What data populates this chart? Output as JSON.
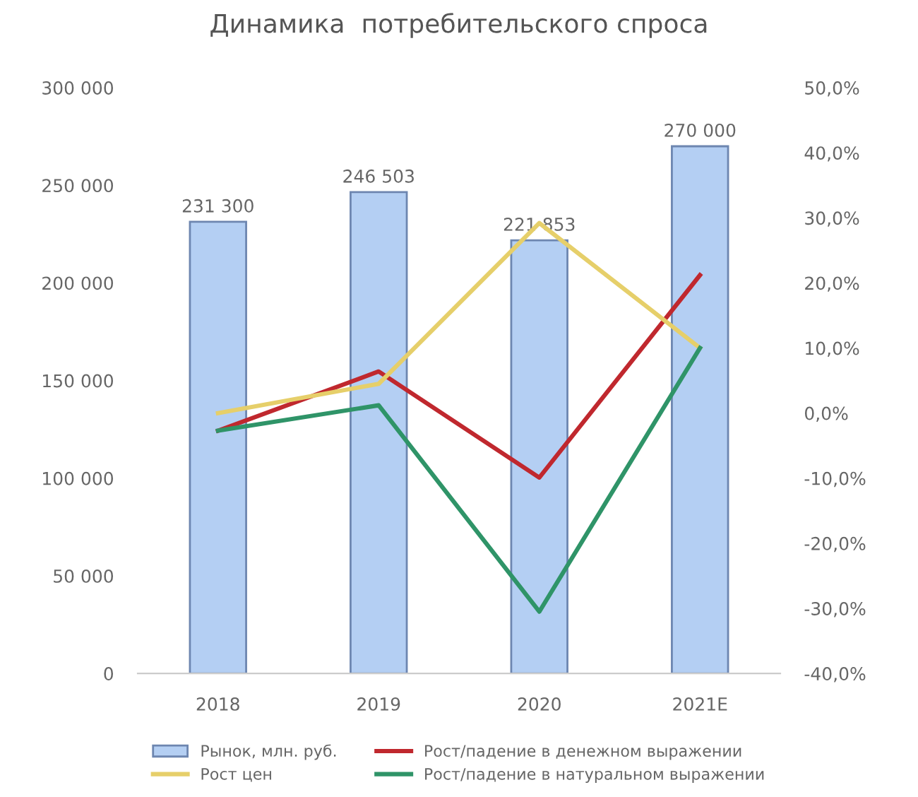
{
  "chart_data": {
    "type": "bar",
    "title": "Динамика  потребительского спроса",
    "categories": [
      "2018",
      "2019",
      "2020",
      "2021E"
    ],
    "series": [
      {
        "name": "Рынок, млн. руб.",
        "color": "#b4cff3",
        "values": [
          231300,
          246503,
          221853,
          270000
        ],
        "value_labels": [
          "231 300",
          "246 503",
          "221 853",
          "270 000"
        ]
      },
      {
        "name": "Рост/падение в денежном выражении",
        "type": "line",
        "axis": "y2",
        "color": "#c0282e",
        "values": [
          -2.7,
          6.4,
          -9.9,
          21.2
        ]
      },
      {
        "name": "Рост цен",
        "type": "line",
        "axis": "y2",
        "color": "#e6cf6a",
        "values": [
          0.0,
          4.5,
          29.2,
          10.0
        ]
      },
      {
        "name": "Рост/падение в натуральном выражении",
        "type": "line",
        "axis": "y2",
        "color": "#2f9468",
        "values": [
          -2.7,
          1.2,
          -30.5,
          10.0
        ]
      }
    ],
    "ylim": [
      0,
      300000
    ],
    "yticks": [
      {
        "value": 0,
        "label": "0"
      },
      {
        "value": 50000,
        "label": "50 000"
      },
      {
        "value": 100000,
        "label": "100 000"
      },
      {
        "value": 150000,
        "label": "150 000"
      },
      {
        "value": 200000,
        "label": "200 000"
      },
      {
        "value": 250000,
        "label": "250 000"
      },
      {
        "value": 300000,
        "label": "300 000"
      }
    ],
    "y2lim": [
      -40,
      50
    ],
    "y2ticks": [
      {
        "value": -40,
        "label": "-40,0%"
      },
      {
        "value": -30,
        "label": "-30,0%"
      },
      {
        "value": -20,
        "label": "-20,0%"
      },
      {
        "value": -10,
        "label": "-10,0%"
      },
      {
        "value": 0,
        "label": "0,0%"
      },
      {
        "value": 10,
        "label": "10,0%"
      },
      {
        "value": 20,
        "label": "20,0%"
      },
      {
        "value": 30,
        "label": "30,0%"
      },
      {
        "value": 40,
        "label": "40,0%"
      },
      {
        "value": 50,
        "label": "50,0%"
      }
    ],
    "legend": "bottom",
    "grid": false,
    "marker": "none",
    "line_style": "solid"
  }
}
